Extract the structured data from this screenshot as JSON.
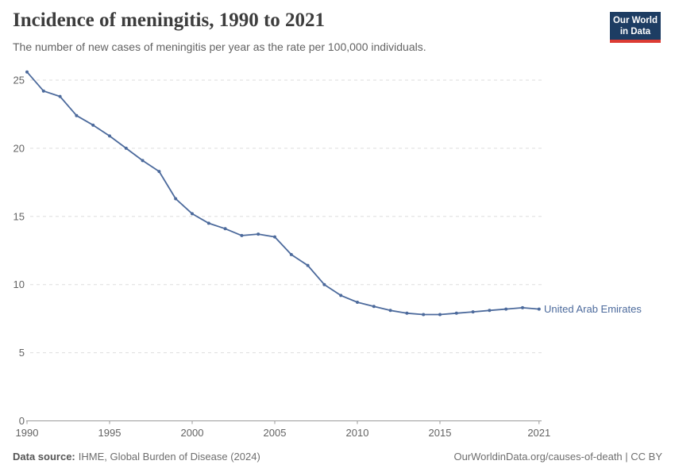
{
  "header": {
    "title": "Incidence of meningitis, 1990 to 2021",
    "subtitle": "The number of new cases of meningitis per year as the rate per 100,000 individuals.",
    "logo": {
      "line1": "Our World",
      "line2": "in Data"
    }
  },
  "colors": {
    "series": "#4c6a9c",
    "logo_bg": "#1d3d63",
    "logo_bar": "#dc3b33",
    "gridline": "#dedede",
    "axis": "#9a9a9a",
    "tick_text": "#636363"
  },
  "chart_data": {
    "type": "line",
    "title": "Incidence of meningitis, 1990 to 2021",
    "x": [
      1990,
      1991,
      1992,
      1993,
      1994,
      1995,
      1996,
      1997,
      1998,
      1999,
      2000,
      2001,
      2002,
      2003,
      2004,
      2005,
      2006,
      2007,
      2008,
      2009,
      2010,
      2011,
      2012,
      2013,
      2014,
      2015,
      2016,
      2017,
      2018,
      2019,
      2020,
      2021
    ],
    "series": [
      {
        "name": "United Arab Emirates",
        "color": "#4c6a9c",
        "values": [
          25.6,
          24.2,
          23.8,
          22.4,
          21.7,
          20.9,
          20.0,
          19.1,
          18.3,
          16.3,
          15.2,
          14.5,
          14.1,
          13.6,
          13.7,
          13.5,
          12.2,
          11.4,
          10.0,
          9.2,
          8.7,
          8.4,
          8.1,
          7.9,
          7.8,
          7.8,
          7.9,
          8.0,
          8.1,
          8.2,
          8.3,
          8.2
        ]
      }
    ],
    "xlabel": "",
    "ylabel": "",
    "xticks": [
      1990,
      1995,
      2000,
      2005,
      2010,
      2015,
      2021
    ],
    "yticks": [
      0,
      5,
      10,
      15,
      20,
      25
    ],
    "xlim": [
      1990,
      2021
    ],
    "ylim": [
      0,
      26
    ],
    "grid": "horizontal-dashed",
    "legend_position": "end-of-line"
  },
  "footer": {
    "source_label": "Data source:",
    "source_text": "IHME, Global Burden of Disease (2024)",
    "credit": "OurWorldinData.org/causes-of-death | CC BY"
  }
}
